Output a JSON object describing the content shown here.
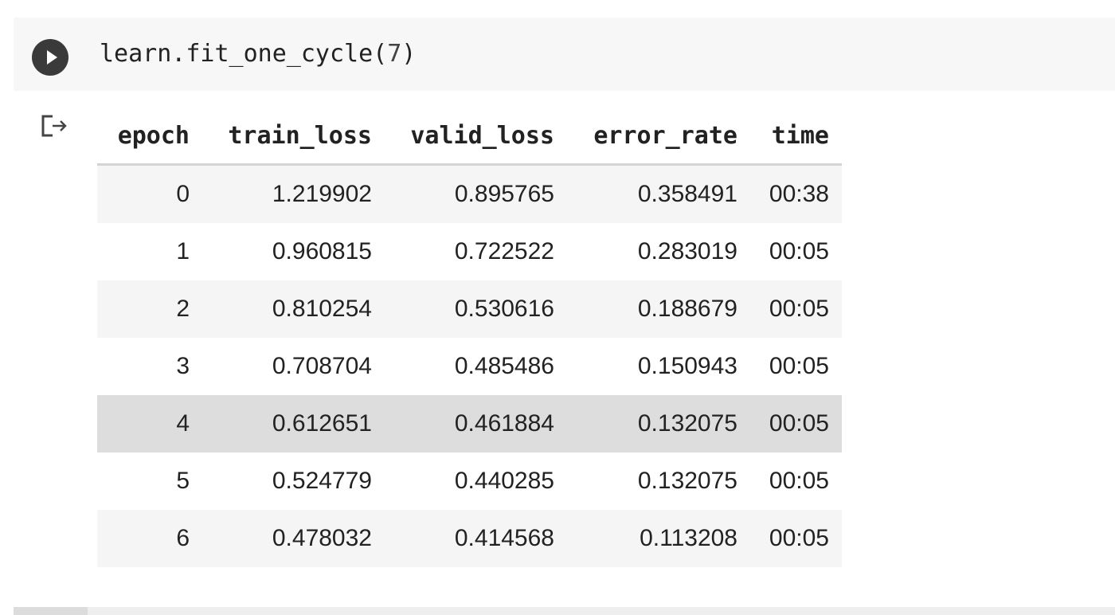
{
  "code_cell": {
    "code_prefix": "learn.fit_one_cycle(",
    "code_arg": "7",
    "code_suffix": ")"
  },
  "icons": {
    "run": "play-circle-icon",
    "output": "output-arrow-icon"
  },
  "colors": {
    "cell_background": "#f7f7f7",
    "run_button": "#3a3a3a",
    "row_stripe": "#f5f5f5",
    "row_hover": "#dddddd"
  },
  "table": {
    "headers": [
      "epoch",
      "train_loss",
      "valid_loss",
      "error_rate",
      "time"
    ],
    "rows": [
      [
        "0",
        "1.219902",
        "0.895765",
        "0.358491",
        "00:38"
      ],
      [
        "1",
        "0.960815",
        "0.722522",
        "0.283019",
        "00:05"
      ],
      [
        "2",
        "0.810254",
        "0.530616",
        "0.188679",
        "00:05"
      ],
      [
        "3",
        "0.708704",
        "0.485486",
        "0.150943",
        "00:05"
      ],
      [
        "4",
        "0.612651",
        "0.461884",
        "0.132075",
        "00:05"
      ],
      [
        "5",
        "0.524779",
        "0.440285",
        "0.132075",
        "00:05"
      ],
      [
        "6",
        "0.478032",
        "0.414568",
        "0.113208",
        "00:05"
      ]
    ]
  }
}
